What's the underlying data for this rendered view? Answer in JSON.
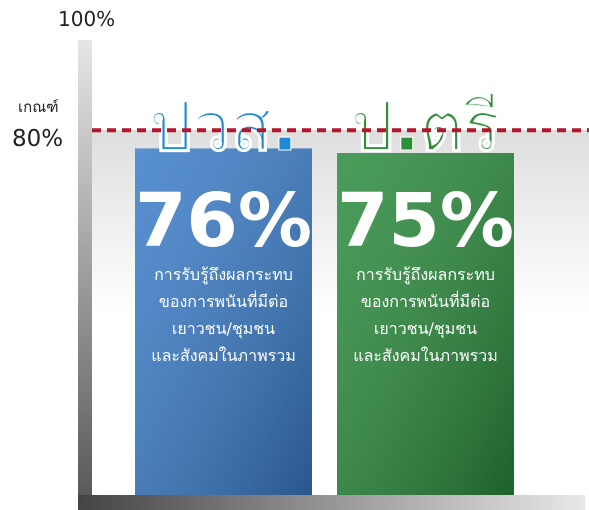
{
  "chart_data": {
    "type": "bar",
    "categories": [
      "ปวส.",
      "ป.ตรี"
    ],
    "values": [
      76,
      75
    ],
    "value_labels": [
      "76%",
      "75%"
    ],
    "colors": [
      "#3a7cc8",
      "#2a8a3c"
    ],
    "label_colors": [
      "#1e8ad6",
      "#2e8f3a"
    ],
    "descriptions": [
      [
        "การรับรู้ถึงผลกระทบ",
        "ของการพนันที่มีต่อ",
        "เยาวชน/ชุมชน",
        "และสังคมในภาพรวม"
      ],
      [
        "การรับรู้ถึงผลกระทบ",
        "ของการพนันที่มีต่อ",
        "เยาวชน/ชุมชน",
        "และสังคมในภาพรวม"
      ]
    ],
    "ylim": [
      0,
      100
    ],
    "yticks": [
      {
        "value": 100,
        "label": "100%"
      }
    ],
    "threshold": {
      "value": 80,
      "title": "เกณฑ์",
      "label": "80%",
      "color": "#b3162c"
    }
  }
}
